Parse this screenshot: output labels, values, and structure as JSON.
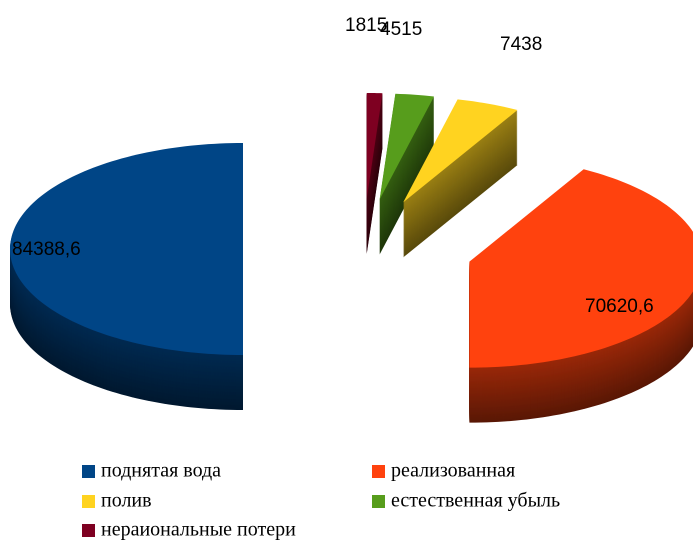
{
  "chart_data": {
    "type": "pie3d",
    "categories": [
      "поднятая вода",
      "реализованная",
      "полив",
      "естественная убыль",
      "нераиональные потери"
    ],
    "values": [
      84388.6,
      70620.6,
      7438,
      4515,
      1815
    ],
    "value_labels": [
      "84388,6",
      "70620,6",
      "7438",
      "4515",
      "1815"
    ],
    "colors": [
      "#004586",
      "#ff420e",
      "#ffd320",
      "#579d1c",
      "#7e0021"
    ],
    "legend": "bottom"
  }
}
